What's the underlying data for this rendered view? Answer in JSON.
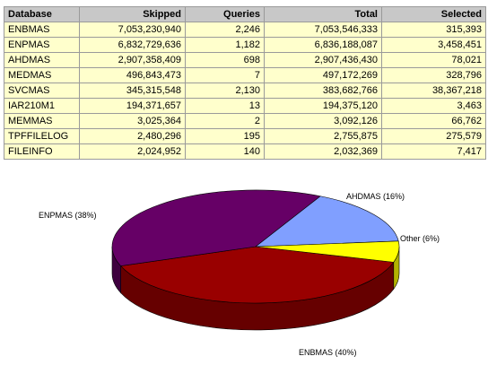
{
  "table": {
    "headers": [
      "Database",
      "Skipped",
      "Queries",
      "Total",
      "Selected"
    ],
    "rows": [
      [
        "ENBMAS",
        "7,053,230,940",
        "2,246",
        "7,053,546,333",
        "315,393"
      ],
      [
        "ENPMAS",
        "6,832,729,636",
        "1,182",
        "6,836,188,087",
        "3,458,451"
      ],
      [
        "AHDMAS",
        "2,907,358,409",
        "698",
        "2,907,436,430",
        "78,021"
      ],
      [
        "MEDMAS",
        "496,843,473",
        "7",
        "497,172,269",
        "328,796"
      ],
      [
        "SVCMAS",
        "345,315,548",
        "2,130",
        "383,682,766",
        "38,367,218"
      ],
      [
        "IAR210M1",
        "194,371,657",
        "13",
        "194,375,120",
        "3,463"
      ],
      [
        "MEMMAS",
        "3,025,364",
        "2",
        "3,092,126",
        "66,762"
      ],
      [
        "TPFFILELOG",
        "2,480,296",
        "195",
        "2,755,875",
        "275,579"
      ],
      [
        "FILEINFO",
        "2,024,952",
        "140",
        "2,032,369",
        "7,417"
      ]
    ]
  },
  "chart_data": {
    "type": "pie",
    "slices": [
      {
        "label": "ENBMAS (40%)",
        "value": 40,
        "color": "#990000",
        "side": "#660000"
      },
      {
        "label": "ENPMAS (38%)",
        "value": 38,
        "color": "#660066",
        "side": "#3f003f"
      },
      {
        "label": "AHDMAS (16%)",
        "value": 16,
        "color": "#809fff",
        "side": "#5570c0"
      },
      {
        "label": "Other (6%)",
        "value": 6,
        "color": "#ffff00",
        "side": "#b3b300"
      }
    ],
    "legend": "none",
    "style": "3d"
  }
}
